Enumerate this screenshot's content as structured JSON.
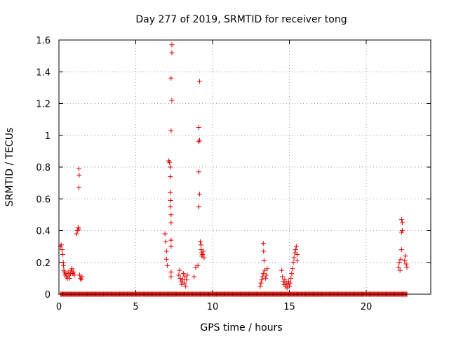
{
  "chart_data": {
    "type": "scatter",
    "title": "Day 277 of 2019, SRMTID for receiver tong",
    "xlabel": "GPS time / hours",
    "ylabel": "SRMTID / TECUs",
    "xlim": [
      0,
      24.2
    ],
    "ylim": [
      0,
      1.6
    ],
    "xticks": [
      0,
      5,
      10,
      15,
      20
    ],
    "yticks": [
      0,
      0.2,
      0.4,
      0.6,
      0.8,
      1,
      1.2,
      1.4,
      1.6
    ],
    "xtick_labels": [
      "0",
      "5",
      "10",
      "15",
      "20"
    ],
    "ytick_labels": [
      "0",
      "0.2",
      "0.4",
      "0.6",
      "0.8",
      "1",
      "1.2",
      "1.4",
      "1.6"
    ],
    "grid": true,
    "marker": "+",
    "color": "#e00000",
    "series": [
      {
        "name": "SRMTID",
        "points": [
          [
            0.1,
            0.3
          ],
          [
            0.15,
            0.31
          ],
          [
            0.2,
            0.28
          ],
          [
            0.25,
            0.25
          ],
          [
            0.28,
            0.2
          ],
          [
            0.3,
            0.18
          ],
          [
            0.32,
            0.15
          ],
          [
            0.35,
            0.14
          ],
          [
            0.4,
            0.12
          ],
          [
            0.45,
            0.13
          ],
          [
            0.5,
            0.11
          ],
          [
            0.55,
            0.1
          ],
          [
            0.6,
            0.14
          ],
          [
            0.65,
            0.12
          ],
          [
            0.7,
            0.1
          ],
          [
            0.75,
            0.13
          ],
          [
            0.8,
            0.15
          ],
          [
            0.85,
            0.16
          ],
          [
            0.9,
            0.13
          ],
          [
            0.95,
            0.14
          ],
          [
            1.0,
            0.12
          ],
          [
            1.15,
            0.38
          ],
          [
            1.2,
            0.4
          ],
          [
            1.25,
            0.42
          ],
          [
            1.3,
            0.41
          ],
          [
            1.3,
            0.79
          ],
          [
            1.32,
            0.75
          ],
          [
            1.3,
            0.67
          ],
          [
            1.35,
            0.12
          ],
          [
            1.4,
            0.1
          ],
          [
            1.45,
            0.09
          ],
          [
            1.5,
            0.11
          ],
          [
            6.9,
            0.38
          ],
          [
            6.95,
            0.33
          ],
          [
            7.0,
            0.27
          ],
          [
            7.0,
            0.22
          ],
          [
            7.05,
            0.18
          ],
          [
            7.15,
            0.84
          ],
          [
            7.2,
            0.83
          ],
          [
            7.25,
            0.8
          ],
          [
            7.25,
            0.74
          ],
          [
            7.25,
            0.64
          ],
          [
            7.28,
            0.59
          ],
          [
            7.25,
            0.55
          ],
          [
            7.3,
            0.5
          ],
          [
            7.3,
            0.45
          ],
          [
            7.3,
            0.34
          ],
          [
            7.3,
            0.3
          ],
          [
            7.3,
            0.14
          ],
          [
            7.3,
            0.11
          ],
          [
            7.35,
            1.57
          ],
          [
            7.35,
            1.52
          ],
          [
            7.3,
            1.36
          ],
          [
            7.35,
            1.22
          ],
          [
            7.3,
            1.03
          ],
          [
            7.8,
            0.12
          ],
          [
            7.85,
            0.15
          ],
          [
            7.9,
            0.1
          ],
          [
            7.95,
            0.08
          ],
          [
            8.0,
            0.06
          ],
          [
            8.05,
            0.09
          ],
          [
            8.1,
            0.13
          ],
          [
            8.15,
            0.07
          ],
          [
            8.2,
            0.11
          ],
          [
            8.25,
            0.05
          ],
          [
            8.3,
            0.09
          ],
          [
            8.35,
            0.12
          ],
          [
            8.8,
            0.11
          ],
          [
            8.9,
            0.17
          ],
          [
            9.05,
            0.18
          ],
          [
            9.15,
            1.34
          ],
          [
            9.1,
            1.05
          ],
          [
            9.15,
            0.97
          ],
          [
            9.1,
            0.96
          ],
          [
            9.1,
            0.77
          ],
          [
            9.15,
            0.63
          ],
          [
            9.1,
            0.55
          ],
          [
            9.2,
            0.33
          ],
          [
            9.25,
            0.31
          ],
          [
            9.25,
            0.28
          ],
          [
            9.3,
            0.26
          ],
          [
            9.3,
            0.24
          ],
          [
            9.35,
            0.25
          ],
          [
            9.4,
            0.27
          ],
          [
            9.45,
            0.23
          ],
          [
            13.1,
            0.05
          ],
          [
            13.15,
            0.07
          ],
          [
            13.2,
            0.09
          ],
          [
            13.25,
            0.11
          ],
          [
            13.3,
            0.13
          ],
          [
            13.3,
            0.32
          ],
          [
            13.32,
            0.27
          ],
          [
            13.35,
            0.21
          ],
          [
            13.4,
            0.15
          ],
          [
            13.45,
            0.1
          ],
          [
            13.5,
            0.12
          ],
          [
            13.55,
            0.16
          ],
          [
            14.5,
            0.15
          ],
          [
            14.55,
            0.11
          ],
          [
            14.6,
            0.08
          ],
          [
            14.65,
            0.06
          ],
          [
            14.7,
            0.09
          ],
          [
            14.75,
            0.05
          ],
          [
            14.8,
            0.07
          ],
          [
            14.85,
            0.04
          ],
          [
            14.9,
            0.06
          ],
          [
            14.95,
            0.08
          ],
          [
            15.0,
            0.05
          ],
          [
            15.05,
            0.07
          ],
          [
            15.1,
            0.1
          ],
          [
            15.15,
            0.13
          ],
          [
            15.2,
            0.16
          ],
          [
            15.25,
            0.2
          ],
          [
            15.3,
            0.23
          ],
          [
            15.35,
            0.26
          ],
          [
            15.4,
            0.28
          ],
          [
            15.45,
            0.3
          ],
          [
            15.5,
            0.25
          ],
          [
            15.5,
            0.21
          ],
          [
            22.1,
            0.17
          ],
          [
            22.15,
            0.2
          ],
          [
            22.2,
            0.15
          ],
          [
            22.25,
            0.22
          ],
          [
            22.3,
            0.28
          ],
          [
            22.3,
            0.39
          ],
          [
            22.35,
            0.4
          ],
          [
            22.35,
            0.45
          ],
          [
            22.3,
            0.47
          ],
          [
            22.5,
            0.21
          ],
          [
            22.55,
            0.24
          ],
          [
            22.6,
            0.19
          ],
          [
            22.65,
            0.17
          ]
        ],
        "zero_ranges": [
          [
            0.1,
            1.6
          ],
          [
            1.6,
            22.7
          ]
        ]
      }
    ]
  }
}
